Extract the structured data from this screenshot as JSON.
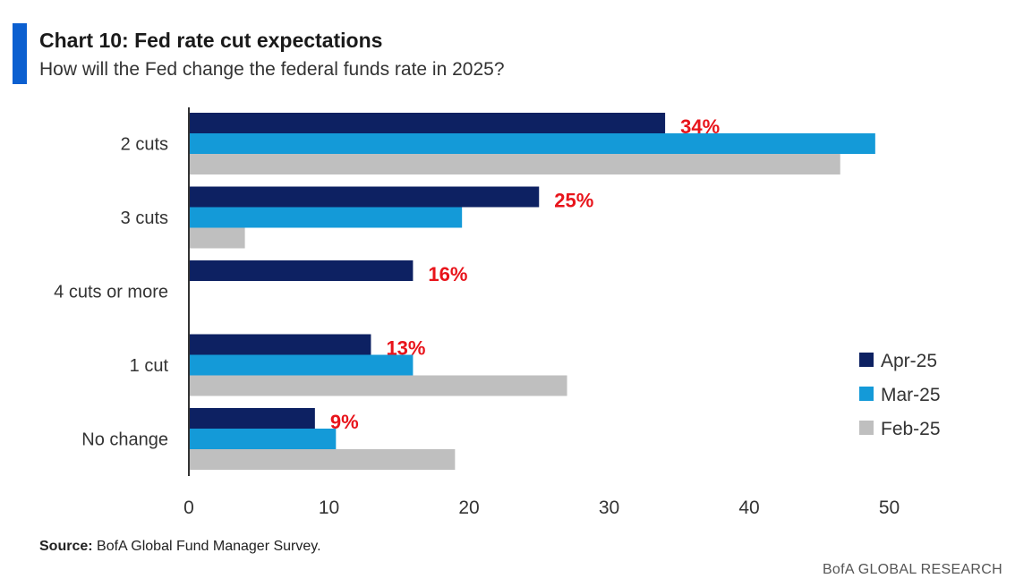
{
  "header": {
    "title": "Chart 10: Fed rate cut expectations",
    "subtitle": "How will the Fed change the federal funds rate in 2025?"
  },
  "footer": {
    "source_prefix": "Source:",
    "source_text": " BofA Global Fund Manager Survey.",
    "brand": "BofA GLOBAL RESEARCH"
  },
  "colors": {
    "accent": "#0b5fd0",
    "apr": "#0d2162",
    "mar": "#149ad8",
    "feb": "#bfbfbf",
    "label": "#e8141b"
  },
  "chart_data": {
    "type": "bar",
    "orientation": "horizontal",
    "title": "Chart 10: Fed rate cut expectations",
    "subtitle": "How will the Fed change the federal funds rate in 2025?",
    "categories": [
      "2 cuts",
      "3 cuts",
      "4 cuts or more",
      "1 cut",
      "No change"
    ],
    "series": [
      {
        "name": "Apr-25",
        "values": [
          34,
          25,
          16,
          13,
          9
        ]
      },
      {
        "name": "Mar-25",
        "values": [
          49,
          19.5,
          0,
          16,
          10.5
        ]
      },
      {
        "name": "Feb-25",
        "values": [
          46.5,
          4,
          0,
          27,
          19
        ]
      }
    ],
    "data_labels": [
      "34%",
      "25%",
      "16%",
      "13%",
      "9%"
    ],
    "xlim": [
      0,
      50
    ],
    "xticks": [
      "0",
      "10",
      "20",
      "30",
      "40",
      "50"
    ],
    "grid": false,
    "legend_position": "right"
  }
}
